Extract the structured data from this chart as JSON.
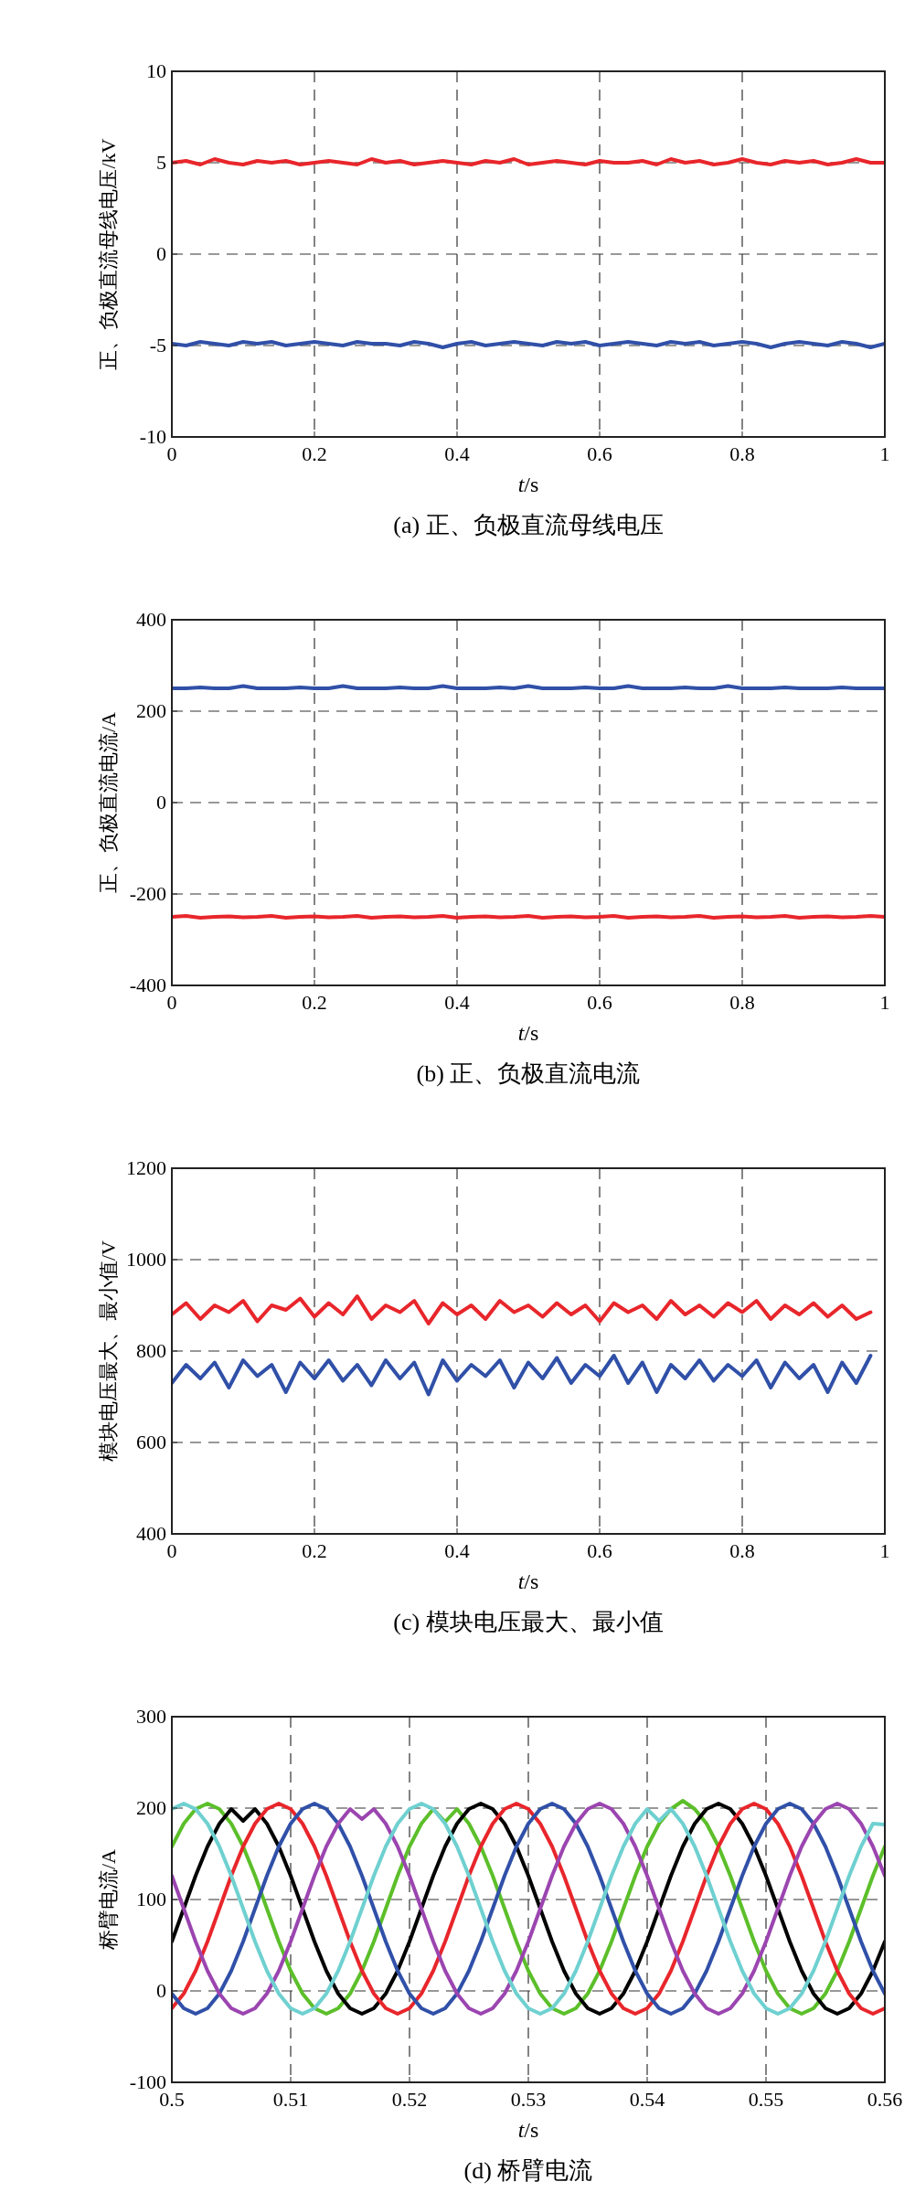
{
  "chart_data": [
    {
      "type": "line",
      "title": "(a) 正、负极直流母线电压",
      "xlabel": "t/s",
      "ylabel": "正、负极直流母线电压/kV",
      "xlim": [
        0,
        1
      ],
      "ylim": [
        -10,
        10
      ],
      "xticks": [
        0,
        0.2,
        0.4,
        0.6,
        0.8,
        1
      ],
      "yticks": [
        -10,
        -5,
        0,
        5,
        10
      ],
      "grid": true,
      "x": [
        0,
        0.02,
        0.04,
        0.06,
        0.08,
        0.1,
        0.12,
        0.14,
        0.16,
        0.18,
        0.2,
        0.22,
        0.24,
        0.26,
        0.28,
        0.3,
        0.32,
        0.34,
        0.36,
        0.38,
        0.4,
        0.42,
        0.44,
        0.46,
        0.48,
        0.5,
        0.52,
        0.54,
        0.56,
        0.58,
        0.6,
        0.62,
        0.64,
        0.66,
        0.68,
        0.7,
        0.72,
        0.74,
        0.76,
        0.78,
        0.8,
        0.82,
        0.84,
        0.86,
        0.88,
        0.9,
        0.92,
        0.94,
        0.96,
        0.98,
        1
      ],
      "series": [
        {
          "color": "#e8262b",
          "values": [
            5.0,
            5.1,
            4.9,
            5.2,
            5.0,
            4.9,
            5.1,
            5.0,
            5.1,
            4.9,
            5.0,
            5.1,
            5.0,
            4.9,
            5.2,
            5.0,
            5.1,
            4.9,
            5.0,
            5.1,
            5.0,
            4.9,
            5.1,
            5.0,
            5.2,
            4.9,
            5.0,
            5.1,
            5.0,
            4.9,
            5.1,
            5.0,
            5.0,
            5.1,
            4.9,
            5.2,
            5.0,
            5.1,
            4.9,
            5.0,
            5.2,
            5.0,
            4.9,
            5.1,
            5.0,
            5.1,
            4.9,
            5.0,
            5.2,
            5.0,
            5.0
          ]
        },
        {
          "color": "#3050a8",
          "values": [
            -4.9,
            -5.0,
            -4.8,
            -4.9,
            -5.0,
            -4.8,
            -4.9,
            -4.8,
            -5.0,
            -4.9,
            -4.8,
            -4.9,
            -5.0,
            -4.8,
            -4.9,
            -4.9,
            -5.0,
            -4.8,
            -4.9,
            -5.1,
            -4.9,
            -4.8,
            -5.0,
            -4.9,
            -4.8,
            -4.9,
            -5.0,
            -4.8,
            -4.9,
            -4.8,
            -5.0,
            -4.9,
            -4.8,
            -4.9,
            -5.0,
            -4.8,
            -4.9,
            -4.8,
            -5.0,
            -4.9,
            -4.8,
            -4.9,
            -5.1,
            -4.9,
            -4.8,
            -4.9,
            -5.0,
            -4.8,
            -4.9,
            -5.1,
            -4.9
          ]
        }
      ]
    },
    {
      "type": "line",
      "title": "(b) 正、负极直流电流",
      "xlabel": "t/s",
      "ylabel": "正、负极直流电流/A",
      "xlim": [
        0,
        1
      ],
      "ylim": [
        -400,
        400
      ],
      "xticks": [
        0,
        0.2,
        0.4,
        0.6,
        0.8,
        1
      ],
      "yticks": [
        -400,
        -200,
        0,
        200,
        400
      ],
      "grid": true,
      "x": [
        0,
        0.02,
        0.04,
        0.06,
        0.08,
        0.1,
        0.12,
        0.14,
        0.16,
        0.18,
        0.2,
        0.22,
        0.24,
        0.26,
        0.28,
        0.3,
        0.32,
        0.34,
        0.36,
        0.38,
        0.4,
        0.42,
        0.44,
        0.46,
        0.48,
        0.5,
        0.52,
        0.54,
        0.56,
        0.58,
        0.6,
        0.62,
        0.64,
        0.66,
        0.68,
        0.7,
        0.72,
        0.74,
        0.76,
        0.78,
        0.8,
        0.82,
        0.84,
        0.86,
        0.88,
        0.9,
        0.92,
        0.94,
        0.96,
        0.98,
        1
      ],
      "series": [
        {
          "color": "#3050a8",
          "values": [
            250,
            250,
            252,
            250,
            250,
            255,
            250,
            250,
            250,
            252,
            250,
            250,
            255,
            250,
            250,
            250,
            252,
            250,
            250,
            255,
            250,
            250,
            250,
            252,
            250,
            255,
            250,
            250,
            250,
            252,
            250,
            250,
            255,
            250,
            250,
            250,
            252,
            250,
            250,
            255,
            250,
            250,
            250,
            252,
            250,
            250,
            250,
            252,
            250,
            250,
            250
          ]
        },
        {
          "color": "#e8262b",
          "values": [
            -250,
            -248,
            -252,
            -250,
            -249,
            -251,
            -250,
            -248,
            -252,
            -250,
            -249,
            -251,
            -250,
            -248,
            -252,
            -250,
            -249,
            -251,
            -250,
            -248,
            -252,
            -250,
            -249,
            -251,
            -250,
            -248,
            -252,
            -250,
            -249,
            -251,
            -250,
            -248,
            -252,
            -250,
            -249,
            -251,
            -250,
            -248,
            -252,
            -250,
            -249,
            -251,
            -250,
            -248,
            -252,
            -250,
            -249,
            -251,
            -250,
            -248,
            -250
          ]
        }
      ]
    },
    {
      "type": "line",
      "title": "(c) 模块电压最大、最小值",
      "xlabel": "t/s",
      "ylabel": "模块电压最大、最小值/V",
      "xlim": [
        0,
        1
      ],
      "ylim": [
        400,
        1200
      ],
      "xticks": [
        0,
        0.2,
        0.4,
        0.6,
        0.8,
        1
      ],
      "yticks": [
        400,
        600,
        800,
        1000,
        1200
      ],
      "grid": true,
      "x": [
        0,
        0.02,
        0.04,
        0.06,
        0.08,
        0.1,
        0.12,
        0.14,
        0.16,
        0.18,
        0.2,
        0.22,
        0.24,
        0.26,
        0.28,
        0.3,
        0.32,
        0.34,
        0.36,
        0.38,
        0.4,
        0.42,
        0.44,
        0.46,
        0.48,
        0.5,
        0.52,
        0.54,
        0.56,
        0.58,
        0.6,
        0.62,
        0.64,
        0.66,
        0.68,
        0.7,
        0.72,
        0.74,
        0.76,
        0.78,
        0.8,
        0.82,
        0.84,
        0.86,
        0.88,
        0.9,
        0.92,
        0.94,
        0.96,
        0.98
      ],
      "series": [
        {
          "color": "#e8262b",
          "values": [
            880,
            905,
            870,
            900,
            885,
            910,
            865,
            900,
            890,
            915,
            875,
            905,
            880,
            920,
            870,
            900,
            885,
            910,
            860,
            905,
            880,
            900,
            870,
            910,
            885,
            900,
            875,
            905,
            880,
            900,
            865,
            905,
            885,
            900,
            870,
            910,
            880,
            900,
            875,
            905,
            885,
            910,
            870,
            900,
            880,
            905,
            875,
            900,
            870,
            885
          ]
        },
        {
          "color": "#3050a8",
          "values": [
            730,
            770,
            740,
            775,
            720,
            780,
            745,
            770,
            710,
            775,
            740,
            780,
            735,
            770,
            725,
            780,
            740,
            775,
            705,
            780,
            735,
            770,
            745,
            780,
            720,
            775,
            740,
            785,
            730,
            770,
            745,
            790,
            730,
            775,
            710,
            770,
            740,
            780,
            735,
            770,
            745,
            780,
            720,
            775,
            740,
            770,
            710,
            775,
            730,
            790
          ]
        }
      ]
    },
    {
      "type": "line",
      "title": "(d) 桥臂电流",
      "xlabel": "t/s",
      "ylabel": "桥臂电流/A",
      "xlim": [
        0.5,
        0.56
      ],
      "ylim": [
        -100,
        300
      ],
      "xticks": [
        0.5,
        0.51,
        0.52,
        0.53,
        0.54,
        0.55,
        0.56
      ],
      "yticks": [
        -100,
        0,
        100,
        200,
        300
      ],
      "grid": true,
      "x": [
        0.5,
        0.501,
        0.502,
        0.503,
        0.504,
        0.505,
        0.506,
        0.507,
        0.508,
        0.509,
        0.51,
        0.511,
        0.512,
        0.513,
        0.514,
        0.515,
        0.516,
        0.517,
        0.518,
        0.519,
        0.52,
        0.521,
        0.522,
        0.523,
        0.524,
        0.525,
        0.526,
        0.527,
        0.528,
        0.529,
        0.53,
        0.531,
        0.532,
        0.533,
        0.534,
        0.535,
        0.536,
        0.537,
        0.538,
        0.539,
        0.54,
        0.541,
        0.542,
        0.543,
        0.544,
        0.545,
        0.546,
        0.547,
        0.548,
        0.549,
        0.55,
        0.551,
        0.552,
        0.553,
        0.554,
        0.555,
        0.556,
        0.557,
        0.558,
        0.559,
        0.56
      ],
      "series": [
        {
          "color": "#5cbf2a",
          "values": [
            158,
            183,
            199,
            205,
            199,
            183,
            158,
            126,
            90,
            54,
            22,
            -3,
            -19,
            -25,
            -19,
            -3,
            22,
            54,
            90,
            126,
            158,
            183,
            199,
            185,
            199,
            183,
            158,
            126,
            90,
            54,
            22,
            -3,
            -19,
            -25,
            -19,
            -3,
            22,
            54,
            90,
            126,
            158,
            183,
            199,
            208,
            199,
            183,
            158,
            126,
            90,
            54,
            22,
            -3,
            -19,
            -25,
            -19,
            -3,
            22,
            54,
            90,
            126,
            158
          ]
        },
        {
          "color": "#000000",
          "values": [
            54,
            90,
            126,
            158,
            183,
            199,
            186,
            199,
            183,
            158,
            126,
            90,
            54,
            22,
            -3,
            -19,
            -25,
            -19,
            -3,
            22,
            54,
            90,
            126,
            158,
            183,
            199,
            205,
            199,
            183,
            158,
            126,
            90,
            54,
            22,
            -3,
            -19,
            -25,
            -19,
            -3,
            22,
            54,
            90,
            126,
            158,
            183,
            199,
            205,
            199,
            183,
            158,
            126,
            90,
            54,
            22,
            -3,
            -19,
            -25,
            -19,
            -3,
            22,
            54
          ]
        },
        {
          "color": "#e8262b",
          "values": [
            -19,
            -3,
            22,
            54,
            90,
            126,
            158,
            183,
            199,
            205,
            199,
            183,
            158,
            126,
            90,
            54,
            22,
            -3,
            -19,
            -25,
            -19,
            -3,
            22,
            54,
            90,
            126,
            158,
            183,
            199,
            205,
            199,
            183,
            158,
            126,
            90,
            54,
            22,
            -3,
            -19,
            -25,
            -19,
            -3,
            22,
            54,
            90,
            126,
            158,
            183,
            199,
            205,
            199,
            183,
            158,
            126,
            90,
            54,
            22,
            -3,
            -19,
            -25,
            -19
          ]
        },
        {
          "color": "#3050a8",
          "values": [
            -3,
            -19,
            -25,
            -19,
            -3,
            22,
            54,
            90,
            126,
            158,
            183,
            199,
            205,
            199,
            183,
            158,
            126,
            90,
            54,
            22,
            -3,
            -19,
            -25,
            -19,
            -3,
            22,
            54,
            90,
            126,
            158,
            183,
            199,
            205,
            199,
            183,
            158,
            126,
            90,
            54,
            22,
            -3,
            -19,
            -25,
            -19,
            -3,
            22,
            54,
            90,
            126,
            158,
            183,
            199,
            205,
            199,
            183,
            158,
            126,
            90,
            54,
            22,
            -3
          ]
        },
        {
          "color": "#9b45b0",
          "values": [
            126,
            90,
            54,
            22,
            -3,
            -19,
            -25,
            -19,
            -3,
            22,
            54,
            90,
            126,
            158,
            183,
            199,
            188,
            199,
            183,
            158,
            126,
            90,
            54,
            22,
            -3,
            -19,
            -25,
            -19,
            -3,
            22,
            54,
            90,
            126,
            158,
            183,
            199,
            205,
            199,
            183,
            158,
            126,
            90,
            54,
            22,
            -3,
            -19,
            -25,
            -19,
            -3,
            22,
            54,
            90,
            126,
            158,
            183,
            199,
            205,
            199,
            183,
            158,
            126
          ]
        },
        {
          "color": "#6fd0d0",
          "values": [
            199,
            205,
            199,
            183,
            158,
            126,
            90,
            54,
            22,
            -3,
            -19,
            -25,
            -19,
            -3,
            22,
            54,
            90,
            126,
            158,
            183,
            199,
            205,
            199,
            183,
            158,
            126,
            90,
            54,
            22,
            -3,
            -19,
            -25,
            -19,
            -3,
            22,
            54,
            90,
            126,
            158,
            183,
            199,
            186,
            199,
            183,
            158,
            126,
            90,
            54,
            22,
            -3,
            -19,
            -25,
            -19,
            -3,
            22,
            54,
            90,
            126,
            158,
            183,
            182
          ]
        }
      ]
    }
  ]
}
